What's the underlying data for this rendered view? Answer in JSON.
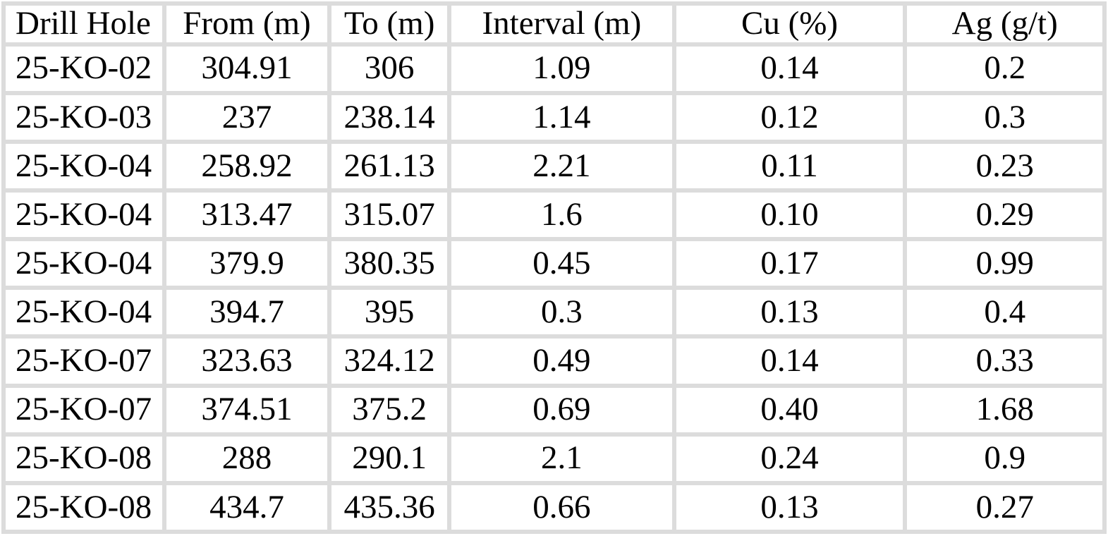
{
  "table": {
    "name": "drill-hole-assay-results",
    "border_color": "#dcdcdc",
    "text_color": "#000000",
    "columns": [
      {
        "label": "Drill Hole",
        "align": "left"
      },
      {
        "label": "From (m)",
        "align": "center"
      },
      {
        "label": "To (m)",
        "align": "center"
      },
      {
        "label": "Interval (m)",
        "align": "center"
      },
      {
        "label": "Cu (%)",
        "align": "center"
      },
      {
        "label": "Ag (g/t)",
        "align": "center"
      }
    ],
    "rows": [
      [
        "25-KO-02",
        "304.91",
        "306",
        "1.09",
        "0.14",
        "0.2"
      ],
      [
        "25-KO-03",
        "237",
        "238.14",
        "1.14",
        "0.12",
        "0.3"
      ],
      [
        "25-KO-04",
        "258.92",
        "261.13",
        "2.21",
        "0.11",
        "0.23"
      ],
      [
        "25-KO-04",
        "313.47",
        "315.07",
        "1.6",
        "0.10",
        "0.29"
      ],
      [
        "25-KO-04",
        "379.9",
        "380.35",
        "0.45",
        "0.17",
        "0.99"
      ],
      [
        "25-KO-04",
        "394.7",
        "395",
        "0.3",
        "0.13",
        "0.4"
      ],
      [
        "25-KO-07",
        "323.63",
        "324.12",
        "0.49",
        "0.14",
        "0.33"
      ],
      [
        "25-KO-07",
        "374.51",
        "375.2",
        "0.69",
        "0.40",
        "1.68"
      ],
      [
        "25-KO-08",
        "288",
        "290.1",
        "2.1",
        "0.24",
        "0.9"
      ],
      [
        "25-KO-08",
        "434.7",
        "435.36",
        "0.66",
        "0.13",
        "0.27"
      ]
    ]
  }
}
